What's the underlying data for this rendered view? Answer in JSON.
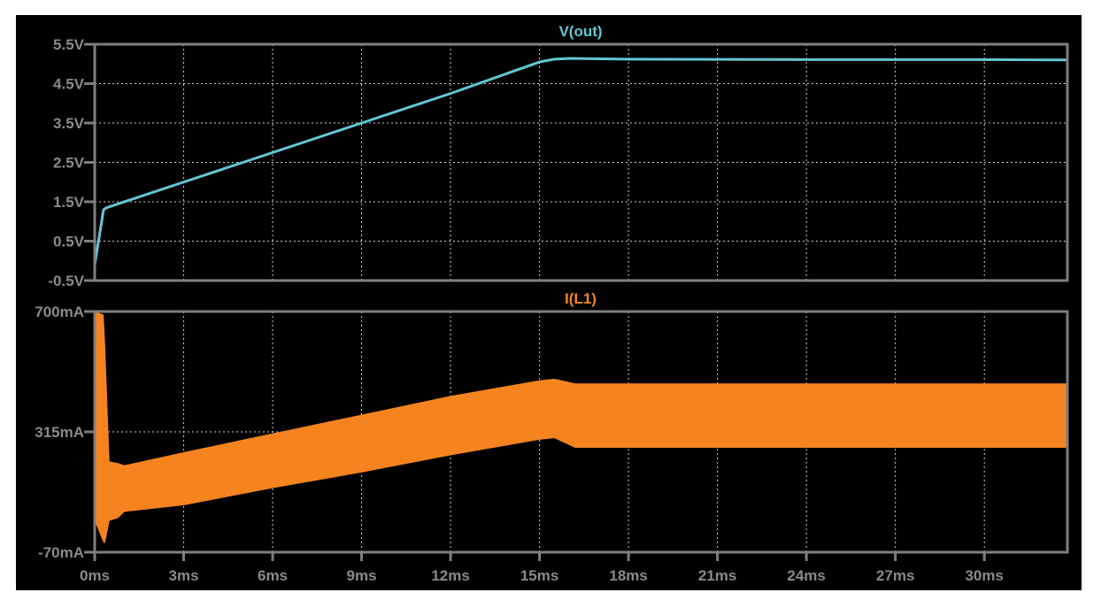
{
  "chart_data": [
    {
      "type": "line",
      "title": "V(out)",
      "xlabel": "",
      "ylabel": "",
      "xlim": [
        0,
        32.8
      ],
      "ylim": [
        -0.5,
        5.5
      ],
      "x_unit": "ms",
      "y_ticks": [
        "5.5V",
        "4.5V",
        "3.5V",
        "2.5V",
        "1.5V",
        "0.5V",
        "-0.5V"
      ],
      "y_tick_values": [
        5.5,
        4.5,
        3.5,
        2.5,
        1.5,
        0.5,
        -0.5
      ],
      "grid": true,
      "color": "#63c6d4",
      "series": [
        {
          "name": "V(out)",
          "x": [
            0,
            0.3,
            0.4,
            3,
            6,
            9,
            12,
            15,
            15.5,
            16,
            18,
            24,
            30,
            32.8
          ],
          "y": [
            -0.1,
            1.3,
            1.35,
            2.0,
            2.75,
            3.5,
            4.25,
            5.05,
            5.12,
            5.14,
            5.12,
            5.11,
            5.11,
            5.1
          ]
        }
      ]
    },
    {
      "type": "area",
      "title": "I(L1)",
      "xlabel": "",
      "ylabel": "",
      "xlim": [
        0,
        32.8
      ],
      "ylim": [
        -70,
        700
      ],
      "x_unit": "ms",
      "y_ticks": [
        "700mA",
        "315mA",
        "-70mA"
      ],
      "y_tick_values": [
        700,
        315,
        -70
      ],
      "x_ticks": [
        "0ms",
        "3ms",
        "6ms",
        "9ms",
        "12ms",
        "15ms",
        "18ms",
        "21ms",
        "24ms",
        "27ms",
        "30ms"
      ],
      "x_tick_values": [
        0,
        3,
        6,
        9,
        12,
        15,
        18,
        21,
        24,
        27,
        30
      ],
      "grid": true,
      "color": "#f5841f",
      "series": [
        {
          "name": "I(L1)",
          "x": [
            0,
            0.3,
            0.35,
            0.5,
            0.8,
            1,
            3,
            6,
            9,
            12,
            15,
            15.5,
            16.2,
            18,
            24,
            30,
            32.8
          ],
          "upper": [
            700,
            690,
            600,
            220,
            215,
            208,
            250,
            310,
            370,
            430,
            480,
            485,
            470,
            470,
            470,
            470,
            470
          ],
          "lower": [
            30,
            -40,
            -40,
            30,
            40,
            59,
            80,
            135,
            185,
            240,
            290,
            295,
            264,
            264,
            264,
            264,
            264
          ]
        }
      ]
    }
  ]
}
